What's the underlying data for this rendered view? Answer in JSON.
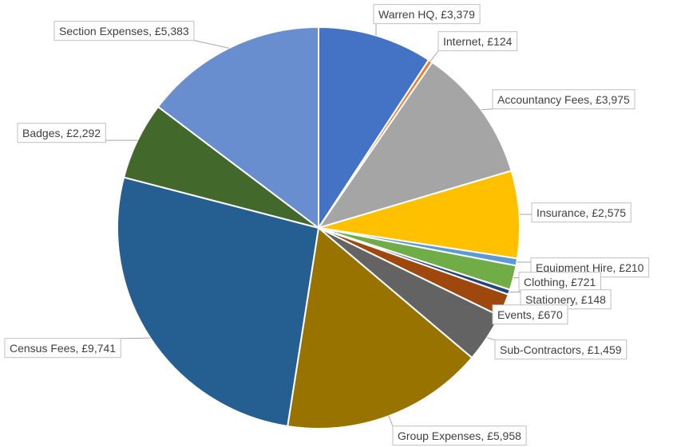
{
  "chart_data": {
    "type": "pie",
    "categories": [
      "Warren HQ",
      "Internet",
      "Accountancy Fees",
      "Insurance",
      "Equipment Hire",
      "Clothing",
      "Stationery",
      "Events",
      "Sub-Contractors",
      "Group Expenses",
      "Census Fees",
      "Badges",
      "Section Expenses"
    ],
    "values": [
      3379,
      124,
      3975,
      2575,
      210,
      721,
      148,
      670,
      1459,
      5958,
      9741,
      2292,
      5383
    ],
    "value_labels": [
      "£3,379",
      "£124",
      "£3,975",
      "£2,575",
      "£210",
      "£721",
      "£148",
      "£670",
      "£1,459",
      "£5,958",
      "£9,741",
      "£2,292",
      "£5,383"
    ],
    "label_separator": ", ",
    "colors": [
      "#4472c4",
      "#ed7d31",
      "#a5a5a5",
      "#ffc000",
      "#5b9bd5",
      "#70ad47",
      "#264478",
      "#9e480e",
      "#636363",
      "#997300",
      "#255e91",
      "#43682b",
      "#698ed0"
    ]
  }
}
